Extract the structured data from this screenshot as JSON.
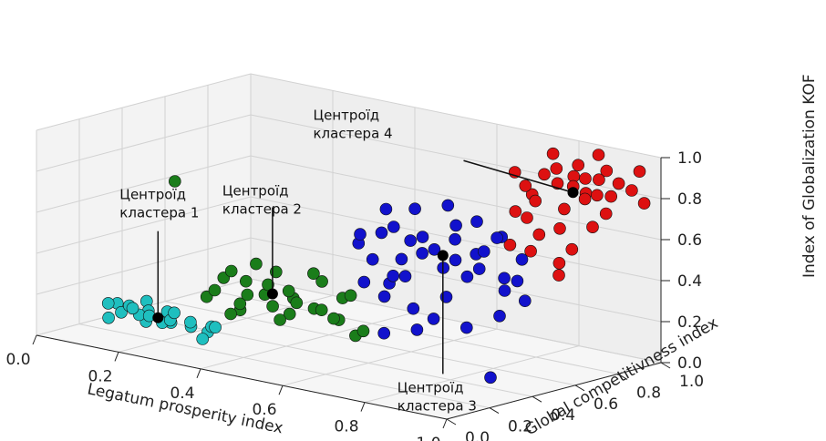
{
  "chart_data": {
    "type": "scatter3d",
    "xlabel": "Legatum prosperity index",
    "ylabel": "Global competitivness index",
    "zlabel": "Index of Globalization KOF",
    "xlim": [
      0,
      1
    ],
    "ylim": [
      0,
      1
    ],
    "zlim": [
      0,
      1
    ],
    "x_ticks": [
      "0.0",
      "0.2",
      "0.4",
      "0.6",
      "0.8",
      "1.0"
    ],
    "y_ticks": [
      "0.0",
      "0.2",
      "0.4",
      "0.6",
      "0.8",
      "1.0"
    ],
    "z_ticks": [
      "0.0",
      "0.2",
      "0.4",
      "0.6",
      "0.8",
      "1.0"
    ],
    "grid": true,
    "series": [
      {
        "color": "#1fbfbf",
        "points": [
          [
            0.05,
            0.3,
            0.05
          ],
          [
            0.08,
            0.28,
            0.1
          ],
          [
            0.1,
            0.32,
            0.02
          ],
          [
            0.12,
            0.25,
            0.08
          ],
          [
            0.06,
            0.22,
            0.12
          ],
          [
            0.15,
            0.3,
            0.04
          ],
          [
            0.09,
            0.35,
            0.06
          ],
          [
            0.13,
            0.2,
            0.13
          ],
          [
            0.18,
            0.28,
            0.07
          ],
          [
            0.04,
            0.26,
            0.03
          ],
          [
            0.11,
            0.4,
            0.05
          ],
          [
            0.16,
            0.22,
            0.1
          ],
          [
            0.07,
            0.38,
            0.09
          ],
          [
            0.2,
            0.26,
            0.12
          ],
          [
            0.03,
            0.32,
            0.08
          ],
          [
            0.14,
            0.36,
            0.02
          ],
          [
            0.22,
            0.3,
            0.05
          ],
          [
            0.25,
            0.24,
            0.1
          ],
          [
            0.27,
            0.3,
            0.07
          ],
          [
            0.3,
            0.26,
            0.09
          ],
          [
            0.29,
            0.22,
            0.04
          ],
          [
            0.24,
            0.34,
            0.02
          ]
        ]
      },
      {
        "color": "#1a7d1a",
        "points": [
          [
            0.3,
            0.22,
            0.25
          ],
          [
            0.33,
            0.2,
            0.3
          ],
          [
            0.35,
            0.28,
            0.22
          ],
          [
            0.38,
            0.25,
            0.35
          ],
          [
            0.4,
            0.3,
            0.28
          ],
          [
            0.42,
            0.18,
            0.32
          ],
          [
            0.36,
            0.22,
            0.4
          ],
          [
            0.44,
            0.26,
            0.25
          ],
          [
            0.46,
            0.2,
            0.38
          ],
          [
            0.48,
            0.28,
            0.3
          ],
          [
            0.5,
            0.22,
            0.36
          ],
          [
            0.52,
            0.3,
            0.26
          ],
          [
            0.54,
            0.18,
            0.33
          ],
          [
            0.56,
            0.26,
            0.42
          ],
          [
            0.58,
            0.22,
            0.3
          ],
          [
            0.6,
            0.28,
            0.35
          ],
          [
            0.62,
            0.2,
            0.28
          ],
          [
            0.34,
            0.3,
            0.18
          ],
          [
            0.39,
            0.16,
            0.22
          ],
          [
            0.45,
            0.32,
            0.2
          ],
          [
            0.51,
            0.16,
            0.24
          ],
          [
            0.57,
            0.32,
            0.22
          ],
          [
            0.63,
            0.26,
            0.38
          ],
          [
            0.41,
            0.24,
            0.45
          ],
          [
            0.49,
            0.18,
            0.46
          ],
          [
            0.31,
            0.28,
            0.33
          ],
          [
            0.55,
            0.24,
            0.46
          ],
          [
            0.05,
            0.55,
            0.62
          ],
          [
            0.6,
            0.34,
            0.15
          ],
          [
            0.64,
            0.3,
            0.2
          ]
        ]
      },
      {
        "color": "#1212cc",
        "points": [
          [
            0.55,
            0.45,
            0.55
          ],
          [
            0.58,
            0.5,
            0.6
          ],
          [
            0.6,
            0.42,
            0.5
          ],
          [
            0.62,
            0.48,
            0.65
          ],
          [
            0.64,
            0.52,
            0.58
          ],
          [
            0.66,
            0.44,
            0.52
          ],
          [
            0.68,
            0.5,
            0.62
          ],
          [
            0.7,
            0.46,
            0.56
          ],
          [
            0.72,
            0.52,
            0.48
          ],
          [
            0.74,
            0.44,
            0.6
          ],
          [
            0.76,
            0.5,
            0.54
          ],
          [
            0.78,
            0.46,
            0.66
          ],
          [
            0.8,
            0.52,
            0.58
          ],
          [
            0.82,
            0.44,
            0.5
          ],
          [
            0.84,
            0.48,
            0.62
          ],
          [
            0.86,
            0.42,
            0.56
          ],
          [
            0.88,
            0.5,
            0.44
          ],
          [
            0.9,
            0.46,
            0.52
          ],
          [
            0.57,
            0.54,
            0.7
          ],
          [
            0.63,
            0.56,
            0.72
          ],
          [
            0.69,
            0.4,
            0.46
          ],
          [
            0.73,
            0.56,
            0.68
          ],
          [
            0.79,
            0.4,
            0.4
          ],
          [
            0.83,
            0.56,
            0.66
          ],
          [
            0.89,
            0.54,
            0.48
          ],
          [
            0.6,
            0.38,
            0.4
          ],
          [
            0.66,
            0.36,
            0.36
          ],
          [
            0.72,
            0.38,
            0.32
          ],
          [
            0.78,
            0.36,
            0.3
          ],
          [
            0.85,
            0.38,
            0.28
          ],
          [
            0.92,
            0.4,
            0.36
          ],
          [
            0.94,
            0.48,
            0.42
          ],
          [
            0.7,
            0.58,
            0.76
          ],
          [
            0.76,
            0.6,
            0.7
          ],
          [
            0.81,
            0.62,
            0.64
          ],
          [
            0.58,
            0.4,
            0.62
          ],
          [
            0.65,
            0.42,
            0.44
          ],
          [
            0.87,
            0.6,
            0.56
          ],
          [
            0.95,
            0.3,
            0.1
          ],
          [
            0.75,
            0.34,
            0.24
          ],
          [
            0.68,
            0.32,
            0.2
          ],
          [
            0.62,
            0.46,
            0.38
          ]
        ]
      },
      {
        "color": "#dd1111",
        "points": [
          [
            0.8,
            0.75,
            0.85
          ],
          [
            0.82,
            0.8,
            0.9
          ],
          [
            0.84,
            0.72,
            0.8
          ],
          [
            0.86,
            0.78,
            0.95
          ],
          [
            0.88,
            0.82,
            0.86
          ],
          [
            0.9,
            0.74,
            0.78
          ],
          [
            0.92,
            0.8,
            0.92
          ],
          [
            0.94,
            0.76,
            0.84
          ],
          [
            0.96,
            0.82,
            0.76
          ],
          [
            0.98,
            0.74,
            0.88
          ],
          [
            0.81,
            0.86,
            0.98
          ],
          [
            0.85,
            0.88,
            0.88
          ],
          [
            0.89,
            0.86,
            0.82
          ],
          [
            0.93,
            0.88,
            0.94
          ],
          [
            0.97,
            0.86,
            0.9
          ],
          [
            0.83,
            0.7,
            0.72
          ],
          [
            0.87,
            0.68,
            0.66
          ],
          [
            0.91,
            0.7,
            0.7
          ],
          [
            0.95,
            0.68,
            0.62
          ],
          [
            0.99,
            0.7,
            0.74
          ],
          [
            0.78,
            0.82,
            0.78
          ],
          [
            0.8,
            0.9,
            0.82
          ],
          [
            0.84,
            0.92,
            0.92
          ],
          [
            0.88,
            0.94,
            0.86
          ],
          [
            0.92,
            0.92,
            0.8
          ],
          [
            0.96,
            0.94,
            0.84
          ],
          [
            1.0,
            0.9,
            0.96
          ],
          [
            0.79,
            0.72,
            0.92
          ],
          [
            0.86,
            0.66,
            0.58
          ],
          [
            0.94,
            0.64,
            0.56
          ],
          [
            0.9,
            0.9,
            1.0
          ],
          [
            0.98,
            0.96,
            0.78
          ],
          [
            0.82,
            0.64,
            0.6
          ],
          [
            0.96,
            0.6,
            0.52
          ],
          [
            0.76,
            0.78,
            0.7
          ]
        ]
      }
    ],
    "centroids": [
      {
        "point": [
          0.15,
          0.28,
          0.07
        ],
        "label": [
          "Центроїд",
          "кластера 1"
        ]
      },
      {
        "point": [
          0.45,
          0.24,
          0.32
        ],
        "label": [
          "Центроїд",
          "кластера 2"
        ]
      },
      {
        "point": [
          0.74,
          0.48,
          0.56
        ],
        "label": [
          "Центроїд",
          "кластера 3"
        ]
      },
      {
        "point": [
          0.89,
          0.8,
          0.84
        ],
        "label": [
          "Центроїд",
          "кластера 4"
        ]
      }
    ]
  }
}
